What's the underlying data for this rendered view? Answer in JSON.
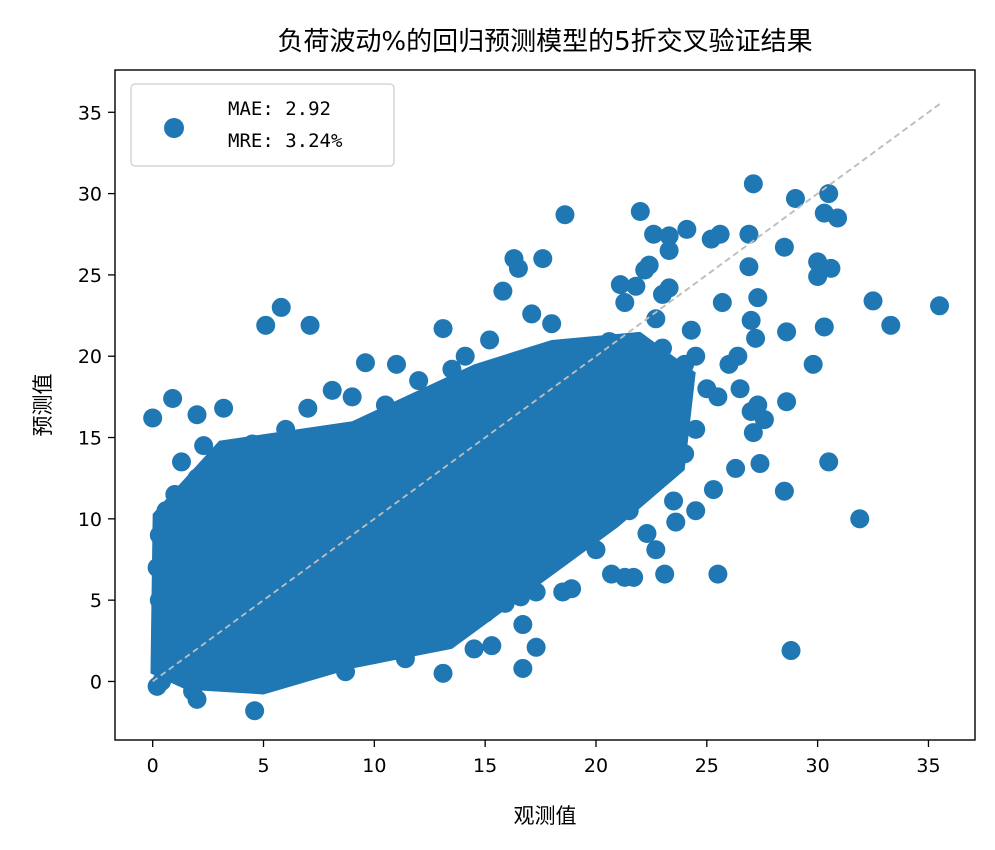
{
  "chart_data": {
    "type": "scatter",
    "title": "负荷波动%的回归预测模型的5折交叉验证结果",
    "xlabel": "观测值",
    "ylabel": "预测值",
    "xlim": [
      -1.7,
      37.1
    ],
    "ylim": [
      -3.6,
      37.6
    ],
    "xticks": [
      "0",
      "5",
      "10",
      "15",
      "20",
      "25",
      "30",
      "35"
    ],
    "yticks": [
      "0",
      "5",
      "10",
      "15",
      "20",
      "25",
      "30",
      "35"
    ],
    "grid": false,
    "legend": {
      "position": "top-left",
      "lines": [
        "MAE: 2.92",
        "MRE: 3.24%"
      ]
    },
    "reference_line": {
      "x": [
        0,
        35.5
      ],
      "y": [
        0,
        35.5
      ],
      "color": "#bfbfbf",
      "style": "dashed"
    },
    "series": [
      {
        "color": "#1f77b4",
        "points": [
          [
            0,
            16.2
          ],
          [
            0.9,
            17.4
          ],
          [
            2.0,
            16.4
          ],
          [
            3.2,
            16.8
          ],
          [
            1.3,
            13.5
          ],
          [
            2.3,
            14.5
          ],
          [
            5.1,
            21.9
          ],
          [
            5.8,
            23.0
          ],
          [
            7.1,
            21.9
          ],
          [
            8.1,
            17.9
          ],
          [
            7.0,
            16.8
          ],
          [
            9.6,
            19.6
          ],
          [
            11.0,
            19.5
          ],
          [
            13.1,
            21.7
          ],
          [
            14.1,
            20.0
          ],
          [
            15.2,
            21.0
          ],
          [
            15.8,
            24.0
          ],
          [
            16.3,
            26.0
          ],
          [
            16.5,
            25.4
          ],
          [
            17.1,
            22.6
          ],
          [
            17.6,
            26.0
          ],
          [
            18.6,
            28.7
          ],
          [
            18.0,
            22.0
          ],
          [
            19.1,
            20.1
          ],
          [
            20.6,
            20.9
          ],
          [
            21.1,
            24.4
          ],
          [
            21.3,
            23.3
          ],
          [
            21.8,
            24.3
          ],
          [
            22.2,
            25.3
          ],
          [
            22.4,
            25.6
          ],
          [
            22.0,
            28.9
          ],
          [
            22.6,
            27.5
          ],
          [
            23.3,
            27.4
          ],
          [
            23.3,
            26.5
          ],
          [
            24.1,
            27.8
          ],
          [
            23.0,
            23.8
          ],
          [
            23.3,
            24.2
          ],
          [
            22.7,
            22.3
          ],
          [
            24.3,
            21.6
          ],
          [
            25.2,
            27.2
          ],
          [
            25.6,
            27.5
          ],
          [
            26.4,
            20.0
          ],
          [
            25.7,
            23.3
          ],
          [
            27.1,
            30.6
          ],
          [
            26.9,
            27.5
          ],
          [
            26.9,
            25.5
          ],
          [
            27.0,
            22.2
          ],
          [
            27.3,
            23.6
          ],
          [
            27.2,
            21.1
          ],
          [
            28.5,
            26.7
          ],
          [
            29.0,
            29.7
          ],
          [
            30.5,
            30.0
          ],
          [
            30.3,
            28.8
          ],
          [
            30.9,
            28.5
          ],
          [
            30.0,
            25.8
          ],
          [
            30.6,
            25.4
          ],
          [
            30.0,
            24.9
          ],
          [
            28.6,
            21.5
          ],
          [
            30.3,
            21.8
          ],
          [
            29.8,
            19.5
          ],
          [
            32.5,
            23.4
          ],
          [
            33.3,
            21.9
          ],
          [
            35.5,
            23.1
          ],
          [
            27.0,
            16.6
          ],
          [
            27.3,
            17.0
          ],
          [
            28.6,
            17.2
          ],
          [
            27.1,
            15.3
          ],
          [
            27.6,
            16.1
          ],
          [
            27.4,
            13.4
          ],
          [
            26.3,
            13.1
          ],
          [
            28.5,
            11.7
          ],
          [
            30.5,
            13.5
          ],
          [
            31.9,
            10.0
          ],
          [
            25.3,
            11.8
          ],
          [
            24.5,
            10.5
          ],
          [
            23.6,
            9.8
          ],
          [
            23.5,
            11.1
          ],
          [
            22.3,
            9.1
          ],
          [
            22.7,
            8.1
          ],
          [
            23.1,
            6.6
          ],
          [
            21.7,
            6.4
          ],
          [
            21.3,
            6.4
          ],
          [
            20.0,
            8.1
          ],
          [
            20.7,
            6.6
          ],
          [
            25.5,
            6.6
          ],
          [
            19.4,
            9.0
          ],
          [
            18.5,
            5.5
          ],
          [
            18.9,
            5.7
          ],
          [
            17.3,
            5.5
          ],
          [
            16.6,
            5.2
          ],
          [
            15.9,
            4.8
          ],
          [
            16.7,
            3.5
          ],
          [
            17.3,
            2.1
          ],
          [
            16.7,
            0.8
          ],
          [
            15.0,
            4.2
          ],
          [
            15.3,
            2.2
          ],
          [
            14.5,
            2.0
          ],
          [
            13.1,
            0.5
          ],
          [
            11.4,
            1.4
          ],
          [
            8.7,
            0.6
          ],
          [
            4.6,
            -1.8
          ],
          [
            2.0,
            -1.1
          ],
          [
            1.8,
            -0.6
          ],
          [
            0.2,
            -0.3
          ],
          [
            0.4,
            0.0
          ],
          [
            28.8,
            1.9
          ],
          [
            12.0,
            18.5
          ],
          [
            13.5,
            19.2
          ],
          [
            15.0,
            16.5
          ],
          [
            14.5,
            18.0
          ],
          [
            12.5,
            16.0
          ],
          [
            10.5,
            17.0
          ],
          [
            9.0,
            17.5
          ],
          [
            6.0,
            15.5
          ],
          [
            4.5,
            14.6
          ],
          [
            3.5,
            13.0
          ],
          [
            5.0,
            12.0
          ],
          [
            7.5,
            13.5
          ],
          [
            9.5,
            14.5
          ],
          [
            11.0,
            15.5
          ],
          [
            16.5,
            19.5
          ],
          [
            18.0,
            19.0
          ],
          [
            19.5,
            18.0
          ],
          [
            21.0,
            17.5
          ],
          [
            22.5,
            18.5
          ],
          [
            24.0,
            19.5
          ],
          [
            25.0,
            18.0
          ],
          [
            23.5,
            16.0
          ],
          [
            20.5,
            15.0
          ],
          [
            18.5,
            14.0
          ],
          [
            19.0,
            11.5
          ],
          [
            21.5,
            13.0
          ],
          [
            22.5,
            14.5
          ],
          [
            24.5,
            15.5
          ],
          [
            17.0,
            10.5
          ],
          [
            15.5,
            9.0
          ],
          [
            14.0,
            7.5
          ],
          [
            12.5,
            6.0
          ],
          [
            11.0,
            4.5
          ],
          [
            9.5,
            3.5
          ],
          [
            8.0,
            2.5
          ],
          [
            6.5,
            1.5
          ],
          [
            5.0,
            0.5
          ],
          [
            3.5,
            0.2
          ],
          [
            2.5,
            1.0
          ],
          [
            1.5,
            2.0
          ],
          [
            0.5,
            3.0
          ],
          [
            0.3,
            5.0
          ],
          [
            0.2,
            7.0
          ],
          [
            0.3,
            9.0
          ],
          [
            0.6,
            10.5
          ],
          [
            1.0,
            11.5
          ],
          [
            2.0,
            12.5
          ],
          [
            3.0,
            11.0
          ],
          [
            1.2,
            8.0
          ],
          [
            2.2,
            6.0
          ],
          [
            3.0,
            4.0
          ],
          [
            4.0,
            3.0
          ],
          [
            5.5,
            4.5
          ],
          [
            6.5,
            6.5
          ],
          [
            7.5,
            8.0
          ],
          [
            8.5,
            9.5
          ],
          [
            9.5,
            11.0
          ],
          [
            10.5,
            12.5
          ],
          [
            11.5,
            13.5
          ],
          [
            12.5,
            14.0
          ],
          [
            13.5,
            15.0
          ],
          [
            14.5,
            13.0
          ],
          [
            15.5,
            14.5
          ],
          [
            16.5,
            15.5
          ],
          [
            17.5,
            16.5
          ],
          [
            18.5,
            17.0
          ],
          [
            19.5,
            15.5
          ],
          [
            20.5,
            13.5
          ],
          [
            19.0,
            12.5
          ],
          [
            17.5,
            12.0
          ],
          [
            16.0,
            11.5
          ],
          [
            14.5,
            10.5
          ],
          [
            13.0,
            9.5
          ],
          [
            11.5,
            8.5
          ],
          [
            10.0,
            7.5
          ],
          [
            8.5,
            6.5
          ],
          [
            7.0,
            5.5
          ],
          [
            5.5,
            6.5
          ],
          [
            4.0,
            7.5
          ],
          [
            3.0,
            8.5
          ],
          [
            2.0,
            9.5
          ],
          [
            4.5,
            9.0
          ],
          [
            6.0,
            10.0
          ],
          [
            7.0,
            11.0
          ],
          [
            8.0,
            12.0
          ],
          [
            9.0,
            12.5
          ],
          [
            10.0,
            10.0
          ],
          [
            11.0,
            11.0
          ],
          [
            12.0,
            11.5
          ],
          [
            13.0,
            12.0
          ],
          [
            14.0,
            12.5
          ],
          [
            15.0,
            12.0
          ],
          [
            16.0,
            13.5
          ],
          [
            17.0,
            14.0
          ],
          [
            18.0,
            13.5
          ],
          [
            6.0,
            3.0
          ],
          [
            7.5,
            3.5
          ],
          [
            9.0,
            5.0
          ],
          [
            10.5,
            6.0
          ],
          [
            12.0,
            7.5
          ],
          [
            13.5,
            8.5
          ],
          [
            15.0,
            10.0
          ],
          [
            16.5,
            8.0
          ],
          [
            18.0,
            8.5
          ],
          [
            19.5,
            10.0
          ],
          [
            20.5,
            11.5
          ],
          [
            21.5,
            10.5
          ],
          [
            22.0,
            12.0
          ],
          [
            23.0,
            13.0
          ],
          [
            24.0,
            14.0
          ],
          [
            2.5,
            3.0
          ],
          [
            1.0,
            4.5
          ],
          [
            1.5,
            6.5
          ],
          [
            0.8,
            1.0
          ],
          [
            3.5,
            5.5
          ],
          [
            5.0,
            8.0
          ],
          [
            6.5,
            8.5
          ],
          [
            8.0,
            10.0
          ],
          [
            12.0,
            3.0
          ],
          [
            14.0,
            4.5
          ],
          [
            10.5,
            2.5
          ],
          [
            16.0,
            6.5
          ],
          [
            17.5,
            7.5
          ],
          [
            20.0,
            17.0
          ],
          [
            21.5,
            19.0
          ],
          [
            23.0,
            20.5
          ],
          [
            24.5,
            20.0
          ],
          [
            26.0,
            19.5
          ],
          [
            25.5,
            17.5
          ],
          [
            26.5,
            18.0
          ]
        ]
      }
    ]
  }
}
